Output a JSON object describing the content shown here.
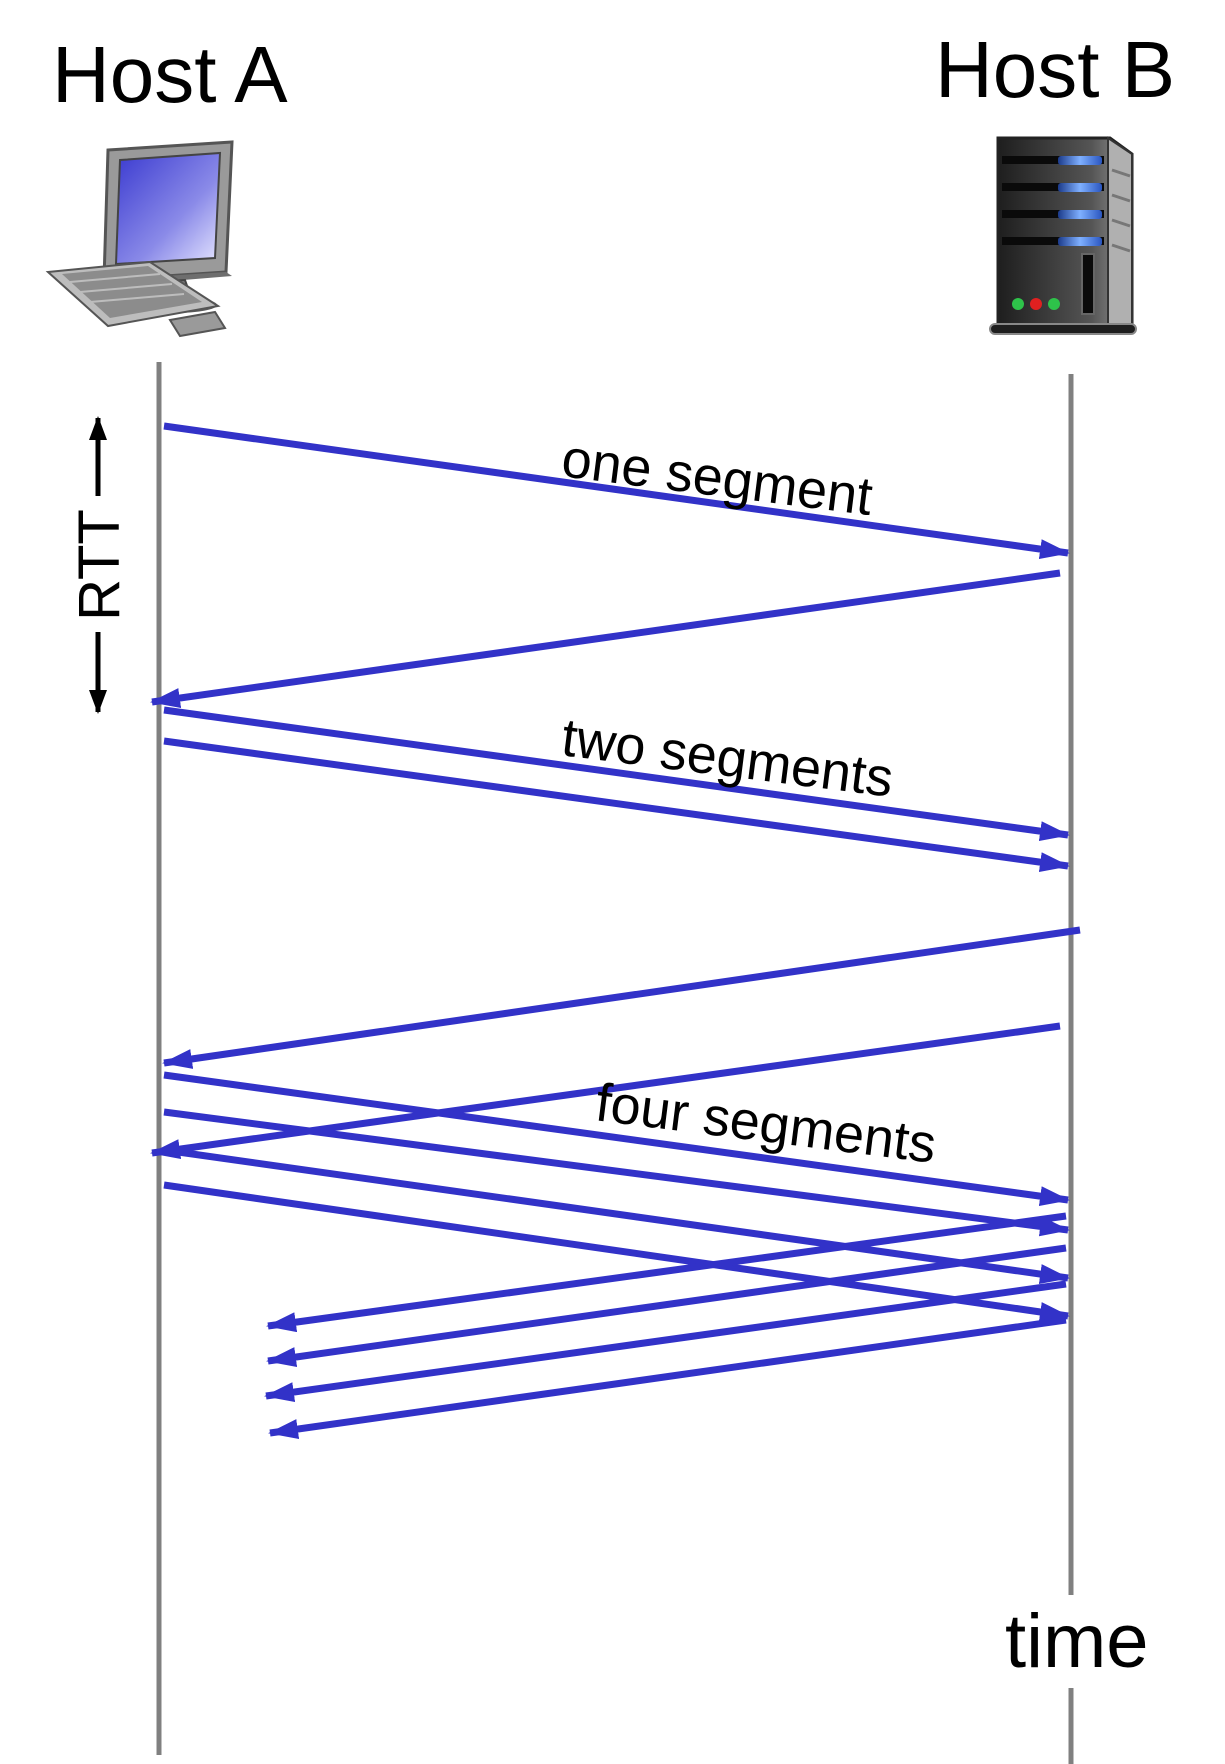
{
  "hosts": {
    "a": {
      "title": "Host A",
      "icon": "desktop-computer-icon"
    },
    "b": {
      "title": "Host B",
      "icon": "server-tower-icon"
    }
  },
  "rtt_label": "RTT",
  "time_label": "time",
  "rounds": [
    {
      "label": "one segment",
      "segments": 1
    },
    {
      "label": "two segments",
      "segments": 2
    },
    {
      "label": "four segments",
      "segments": 4
    }
  ],
  "colors": {
    "arrow": "#3232c8",
    "timeline": "#808080",
    "text": "#000000"
  }
}
